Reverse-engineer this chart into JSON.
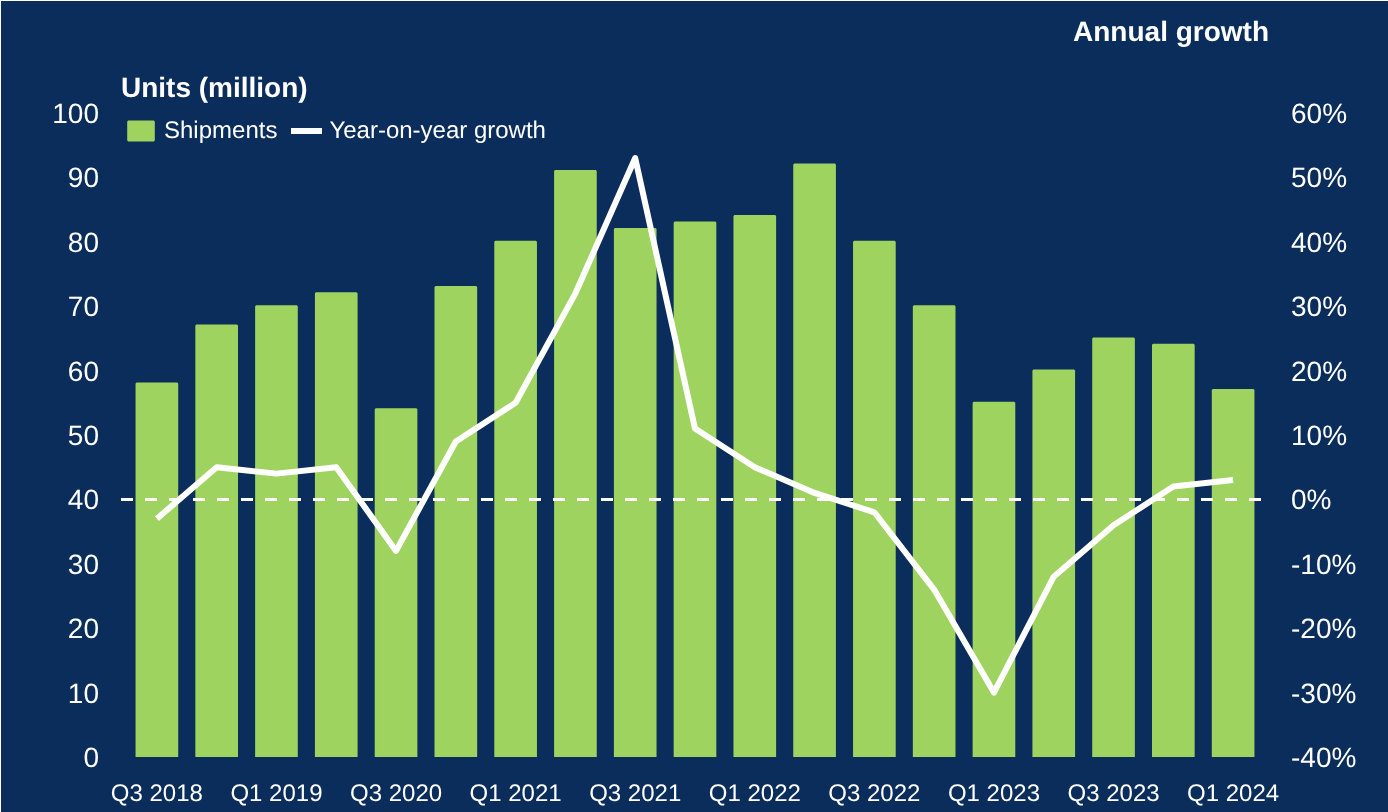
{
  "chart_data": {
    "type": "bar",
    "ylabel": "Units (million)",
    "y2label": "Annual growth",
    "categories": [
      "Q3 2018",
      null,
      "Q1 2019",
      null,
      "Q3 2020",
      null,
      "Q1 2021",
      null,
      "Q3 2021",
      null,
      "Q1 2022",
      null,
      "Q3 2022",
      null,
      "Q1 2023",
      null,
      "Q3 2023",
      null,
      "Q1 2024"
    ],
    "series": [
      {
        "name": "Shipments",
        "color": "#9fd35f",
        "values": [
          58,
          67,
          70,
          72,
          54,
          73,
          80,
          91,
          82,
          83,
          84,
          92,
          80,
          70,
          55,
          60,
          65,
          64,
          57
        ]
      },
      {
        "name": "Year-on-year growth",
        "type": "line",
        "axis": "y2",
        "color": "#ffffff",
        "values": [
          -3,
          5,
          4,
          5,
          -8,
          9,
          15,
          32,
          53,
          11,
          5,
          1,
          -2,
          -14,
          -30,
          -12,
          -4,
          2,
          3
        ]
      }
    ],
    "ylim": [
      0,
      100
    ],
    "yticks": [
      0,
      10,
      20,
      30,
      40,
      50,
      60,
      70,
      80,
      90,
      100
    ],
    "y2lim": [
      -40,
      60
    ],
    "y2ticks": [
      {
        "value": -40,
        "label": "-40%"
      },
      {
        "value": -30,
        "label": "-30%"
      },
      {
        "value": -20,
        "label": "-20%"
      },
      {
        "value": -10,
        "label": "-10%"
      },
      {
        "value": 0,
        "label": "0%"
      },
      {
        "value": 10,
        "label": "10%"
      },
      {
        "value": 20,
        "label": "20%"
      },
      {
        "value": 30,
        "label": "30%"
      },
      {
        "value": 40,
        "label": "40%"
      },
      {
        "value": 50,
        "label": "50%"
      },
      {
        "value": 60,
        "label": "60%"
      }
    ],
    "ref_lines": [
      {
        "axis": "y2",
        "value": 0,
        "label": null,
        "color": "#ffffff",
        "line_style": "dashed"
      }
    ],
    "legend": "top",
    "grid": false,
    "line_style": "solid"
  }
}
